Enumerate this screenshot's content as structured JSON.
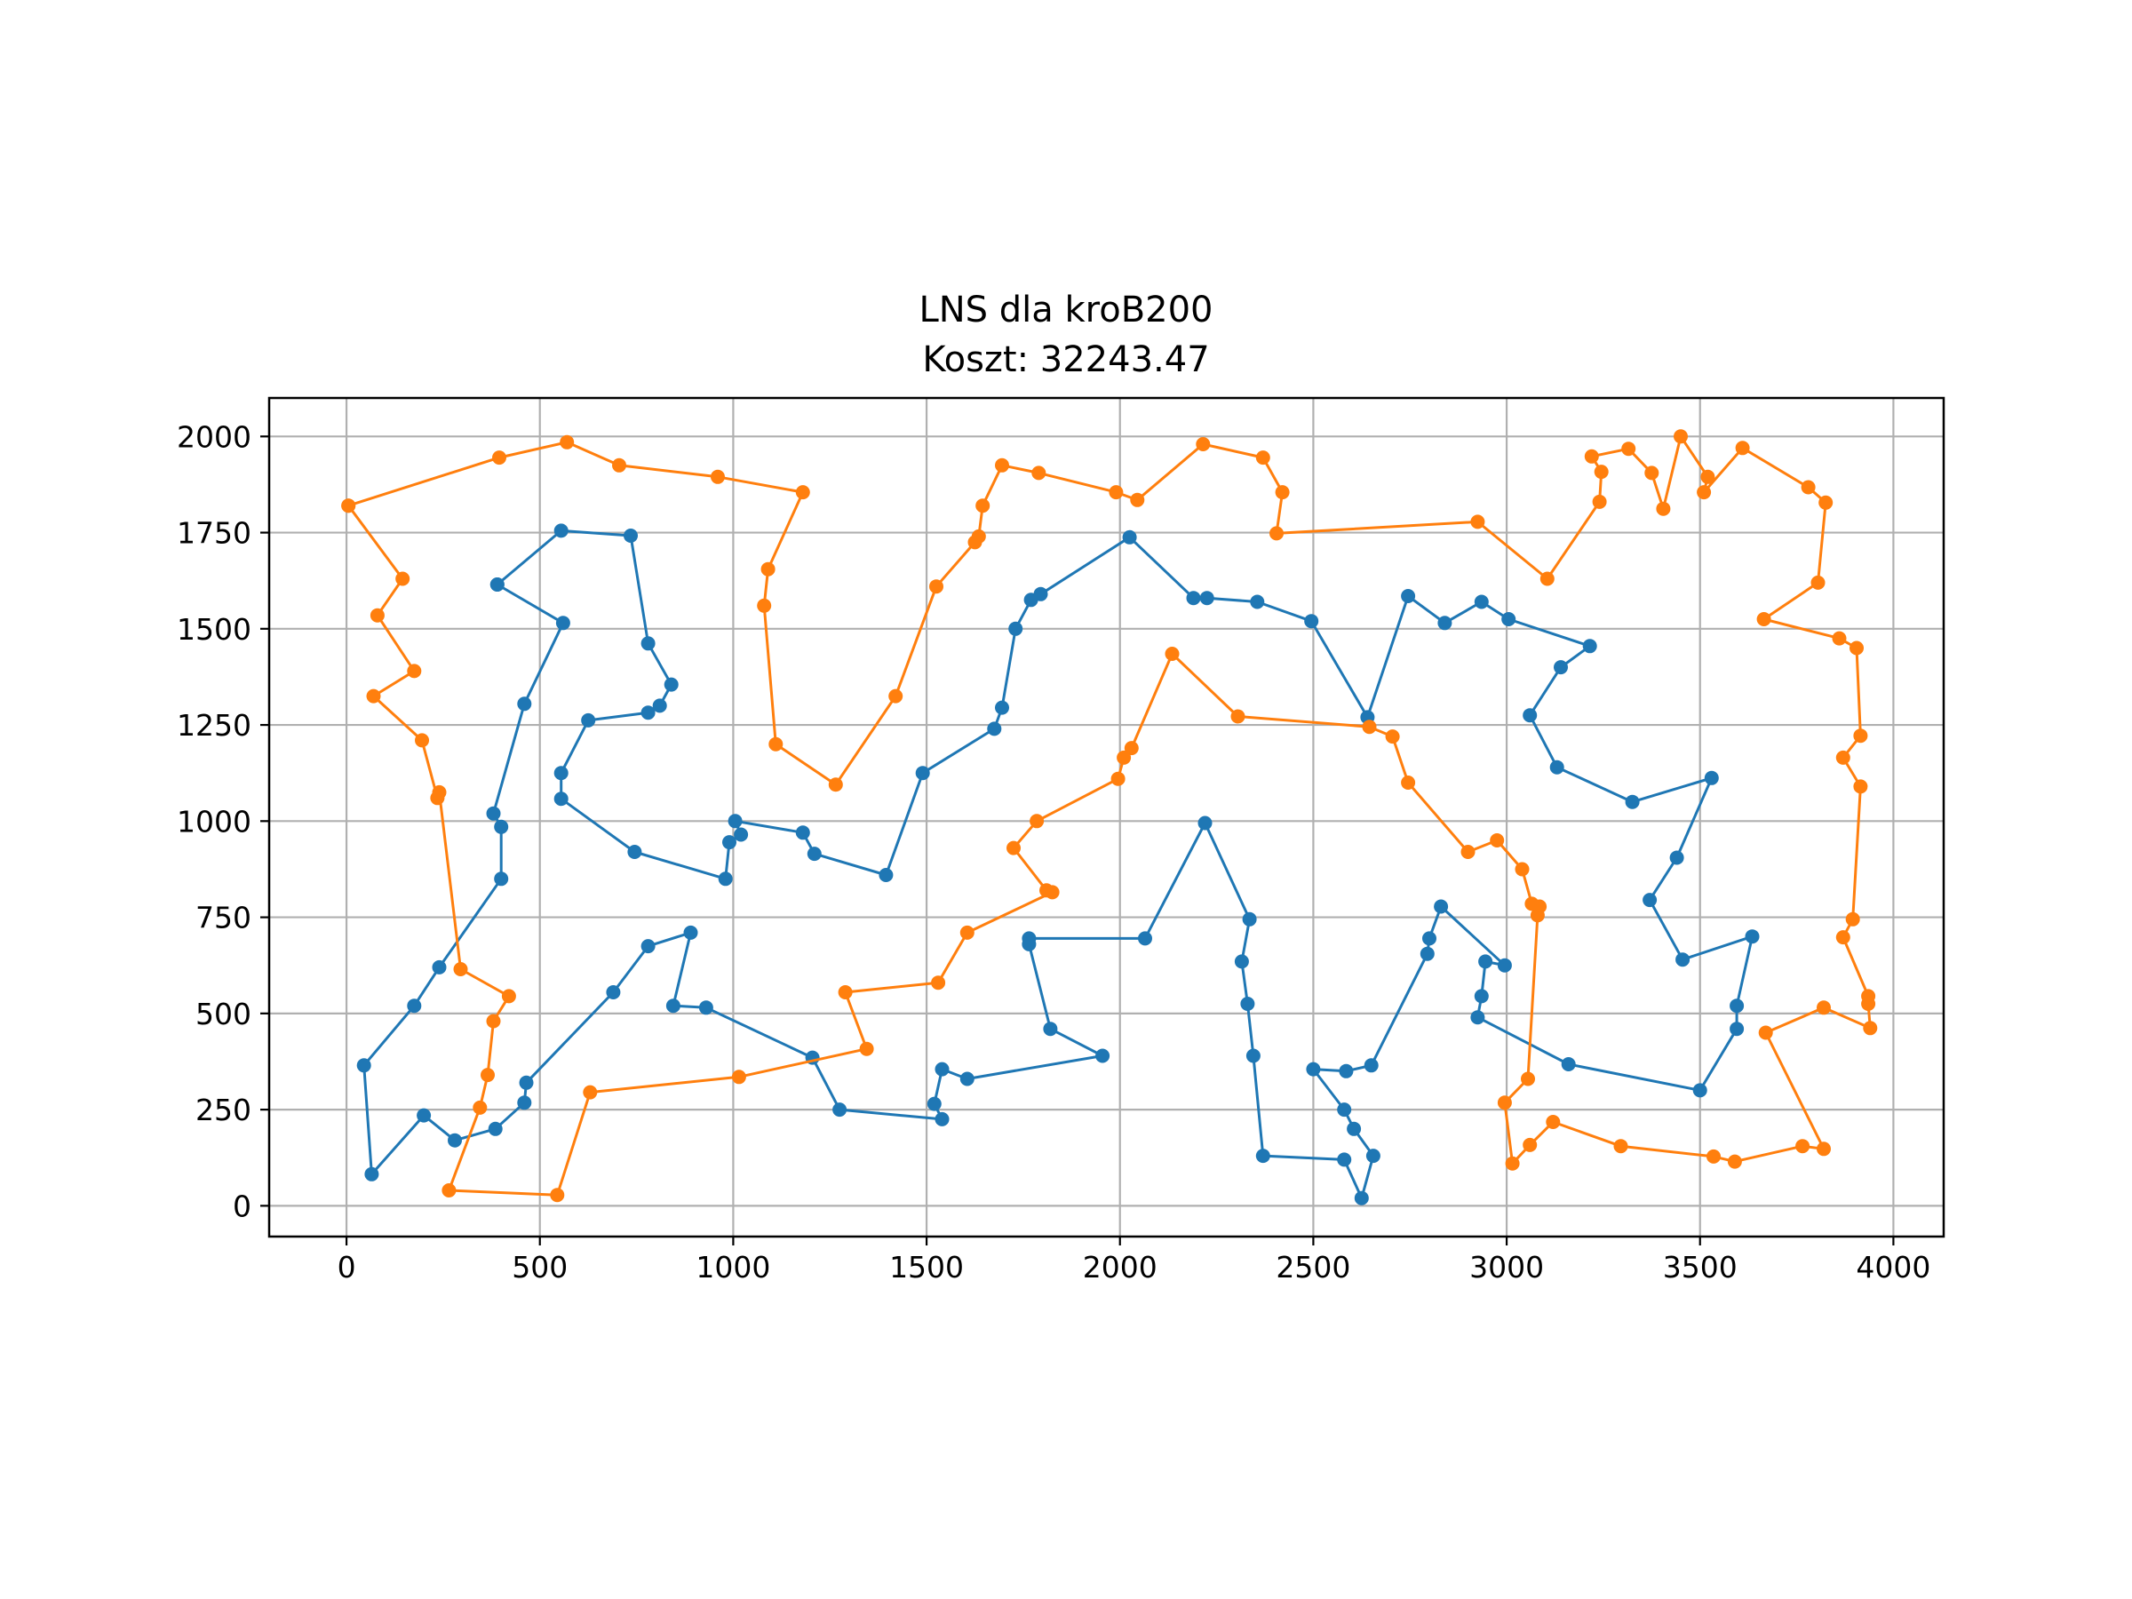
{
  "chart_data": {
    "type": "line",
    "title": "LNS dla kroB200",
    "subtitle": "Koszt: 32243.47",
    "xlabel": "",
    "ylabel": "",
    "xlim": [
      -200,
      4130
    ],
    "ylim": [
      -80,
      2100
    ],
    "x_ticks": [
      0,
      500,
      1000,
      1500,
      2000,
      2500,
      3000,
      3500,
      4000
    ],
    "y_ticks": [
      0,
      250,
      500,
      750,
      1000,
      1250,
      1500,
      1750,
      2000
    ],
    "x_tick_labels": [
      "0",
      "500",
      "1000",
      "1500",
      "2000",
      "2500",
      "3000",
      "3500",
      "4000"
    ],
    "y_tick_labels": [
      "0",
      "250",
      "500",
      "750",
      "1000",
      "1250",
      "1500",
      "1750",
      "2000"
    ],
    "grid": true,
    "legend": "none",
    "series": [
      {
        "color": "#1f77b4",
        "points": [
          [
            390,
            1615
          ],
          [
            555,
            1755
          ],
          [
            735,
            1742
          ],
          [
            780,
            1462
          ],
          [
            840,
            1355
          ],
          [
            810,
            1300
          ],
          [
            780,
            1282
          ],
          [
            625,
            1262
          ],
          [
            555,
            1125
          ],
          [
            555,
            1058
          ],
          [
            745,
            920
          ],
          [
            980,
            850
          ],
          [
            990,
            945
          ],
          [
            1020,
            965
          ],
          [
            1005,
            1000
          ],
          [
            1180,
            970
          ],
          [
            1210,
            915
          ],
          [
            1395,
            860
          ],
          [
            1490,
            1125
          ],
          [
            1675,
            1240
          ],
          [
            1695,
            1295
          ],
          [
            1730,
            1500
          ],
          [
            1770,
            1575
          ],
          [
            1795,
            1590
          ],
          [
            2025,
            1738
          ],
          [
            2190,
            1580
          ],
          [
            2225,
            1580
          ],
          [
            2355,
            1570
          ],
          [
            2495,
            1520
          ],
          [
            2640,
            1270
          ],
          [
            2745,
            1585
          ],
          [
            2840,
            1515
          ],
          [
            2935,
            1570
          ],
          [
            3005,
            1525
          ],
          [
            3215,
            1455
          ],
          [
            3140,
            1400
          ],
          [
            3060,
            1275
          ],
          [
            3130,
            1140
          ],
          [
            3325,
            1050
          ],
          [
            3530,
            1112
          ],
          [
            3440,
            905
          ],
          [
            3370,
            795
          ],
          [
            3455,
            640
          ],
          [
            3635,
            700
          ],
          [
            3595,
            520
          ],
          [
            3595,
            460
          ],
          [
            3500,
            300
          ],
          [
            3160,
            368
          ],
          [
            2925,
            490
          ],
          [
            2935,
            545
          ],
          [
            2945,
            635
          ],
          [
            2995,
            625
          ],
          [
            2830,
            778
          ],
          [
            2800,
            695
          ],
          [
            2795,
            655
          ],
          [
            2650,
            365
          ],
          [
            2585,
            350
          ],
          [
            2500,
            355
          ],
          [
            2580,
            250
          ],
          [
            2605,
            200
          ],
          [
            2655,
            130
          ],
          [
            2625,
            20
          ],
          [
            2580,
            120
          ],
          [
            2370,
            130
          ],
          [
            2345,
            390
          ],
          [
            2330,
            525
          ],
          [
            2315,
            635
          ],
          [
            2335,
            745
          ],
          [
            2220,
            995
          ],
          [
            2065,
            695
          ],
          [
            1765,
            695
          ],
          [
            1765,
            680
          ],
          [
            1820,
            460
          ],
          [
            1955,
            390
          ],
          [
            1605,
            330
          ],
          [
            1540,
            355
          ],
          [
            1520,
            265
          ],
          [
            1540,
            225
          ],
          [
            1275,
            250
          ],
          [
            1205,
            385
          ],
          [
            930,
            515
          ],
          [
            845,
            520
          ],
          [
            890,
            710
          ],
          [
            780,
            675
          ],
          [
            690,
            555
          ],
          [
            465,
            320
          ],
          [
            460,
            268
          ],
          [
            385,
            200
          ],
          [
            280,
            170
          ],
          [
            200,
            235
          ],
          [
            65,
            82
          ],
          [
            45,
            365
          ],
          [
            175,
            520
          ],
          [
            240,
            620
          ],
          [
            400,
            850
          ],
          [
            400,
            985
          ],
          [
            380,
            1020
          ],
          [
            460,
            1305
          ],
          [
            560,
            1515
          ],
          [
            390,
            1615
          ]
        ]
      },
      {
        "color": "#ff7f0e",
        "points": [
          [
            5,
            1820
          ],
          [
            395,
            1945
          ],
          [
            570,
            1985
          ],
          [
            705,
            1925
          ],
          [
            960,
            1895
          ],
          [
            1180,
            1855
          ],
          [
            1090,
            1655
          ],
          [
            1080,
            1560
          ],
          [
            1110,
            1200
          ],
          [
            1265,
            1095
          ],
          [
            1420,
            1325
          ],
          [
            1525,
            1610
          ],
          [
            1625,
            1725
          ],
          [
            1635,
            1740
          ],
          [
            1645,
            1820
          ],
          [
            1695,
            1925
          ],
          [
            1790,
            1905
          ],
          [
            1990,
            1855
          ],
          [
            2045,
            1835
          ],
          [
            2215,
            1980
          ],
          [
            2370,
            1945
          ],
          [
            2420,
            1855
          ],
          [
            2405,
            1748
          ],
          [
            2925,
            1778
          ],
          [
            3105,
            1630
          ],
          [
            3240,
            1830
          ],
          [
            3245,
            1908
          ],
          [
            3220,
            1948
          ],
          [
            3315,
            1968
          ],
          [
            3375,
            1905
          ],
          [
            3405,
            1812
          ],
          [
            3450,
            2000
          ],
          [
            3520,
            1895
          ],
          [
            3510,
            1855
          ],
          [
            3610,
            1970
          ],
          [
            3780,
            1868
          ],
          [
            3825,
            1828
          ],
          [
            3805,
            1620
          ],
          [
            3665,
            1525
          ],
          [
            3860,
            1475
          ],
          [
            3905,
            1450
          ],
          [
            3915,
            1222
          ],
          [
            3870,
            1165
          ],
          [
            3915,
            1090
          ],
          [
            3895,
            745
          ],
          [
            3870,
            698
          ],
          [
            3935,
            545
          ],
          [
            3935,
            525
          ],
          [
            3940,
            462
          ],
          [
            3820,
            515
          ],
          [
            3670,
            450
          ],
          [
            3820,
            148
          ],
          [
            3765,
            155
          ],
          [
            3590,
            115
          ],
          [
            3535,
            128
          ],
          [
            3295,
            155
          ],
          [
            3120,
            218
          ],
          [
            3060,
            158
          ],
          [
            3015,
            110
          ],
          [
            2995,
            268
          ],
          [
            3055,
            330
          ],
          [
            3080,
            755
          ],
          [
            3085,
            778
          ],
          [
            3065,
            785
          ],
          [
            3040,
            875
          ],
          [
            2975,
            950
          ],
          [
            2900,
            920
          ],
          [
            2745,
            1100
          ],
          [
            2705,
            1220
          ],
          [
            2645,
            1245
          ],
          [
            2305,
            1272
          ],
          [
            2135,
            1435
          ],
          [
            2030,
            1190
          ],
          [
            2010,
            1165
          ],
          [
            1995,
            1110
          ],
          [
            1785,
            1000
          ],
          [
            1725,
            930
          ],
          [
            1810,
            820
          ],
          [
            1825,
            815
          ],
          [
            1605,
            710
          ],
          [
            1530,
            580
          ],
          [
            1290,
            555
          ],
          [
            1345,
            408
          ],
          [
            1015,
            335
          ],
          [
            630,
            295
          ],
          [
            545,
            28
          ],
          [
            265,
            40
          ],
          [
            345,
            255
          ],
          [
            365,
            340
          ],
          [
            380,
            480
          ],
          [
            420,
            545
          ],
          [
            295,
            615
          ],
          [
            240,
            1075
          ],
          [
            235,
            1060
          ],
          [
            195,
            1210
          ],
          [
            70,
            1325
          ],
          [
            175,
            1390
          ],
          [
            80,
            1535
          ],
          [
            145,
            1630
          ],
          [
            5,
            1820
          ]
        ]
      }
    ]
  }
}
